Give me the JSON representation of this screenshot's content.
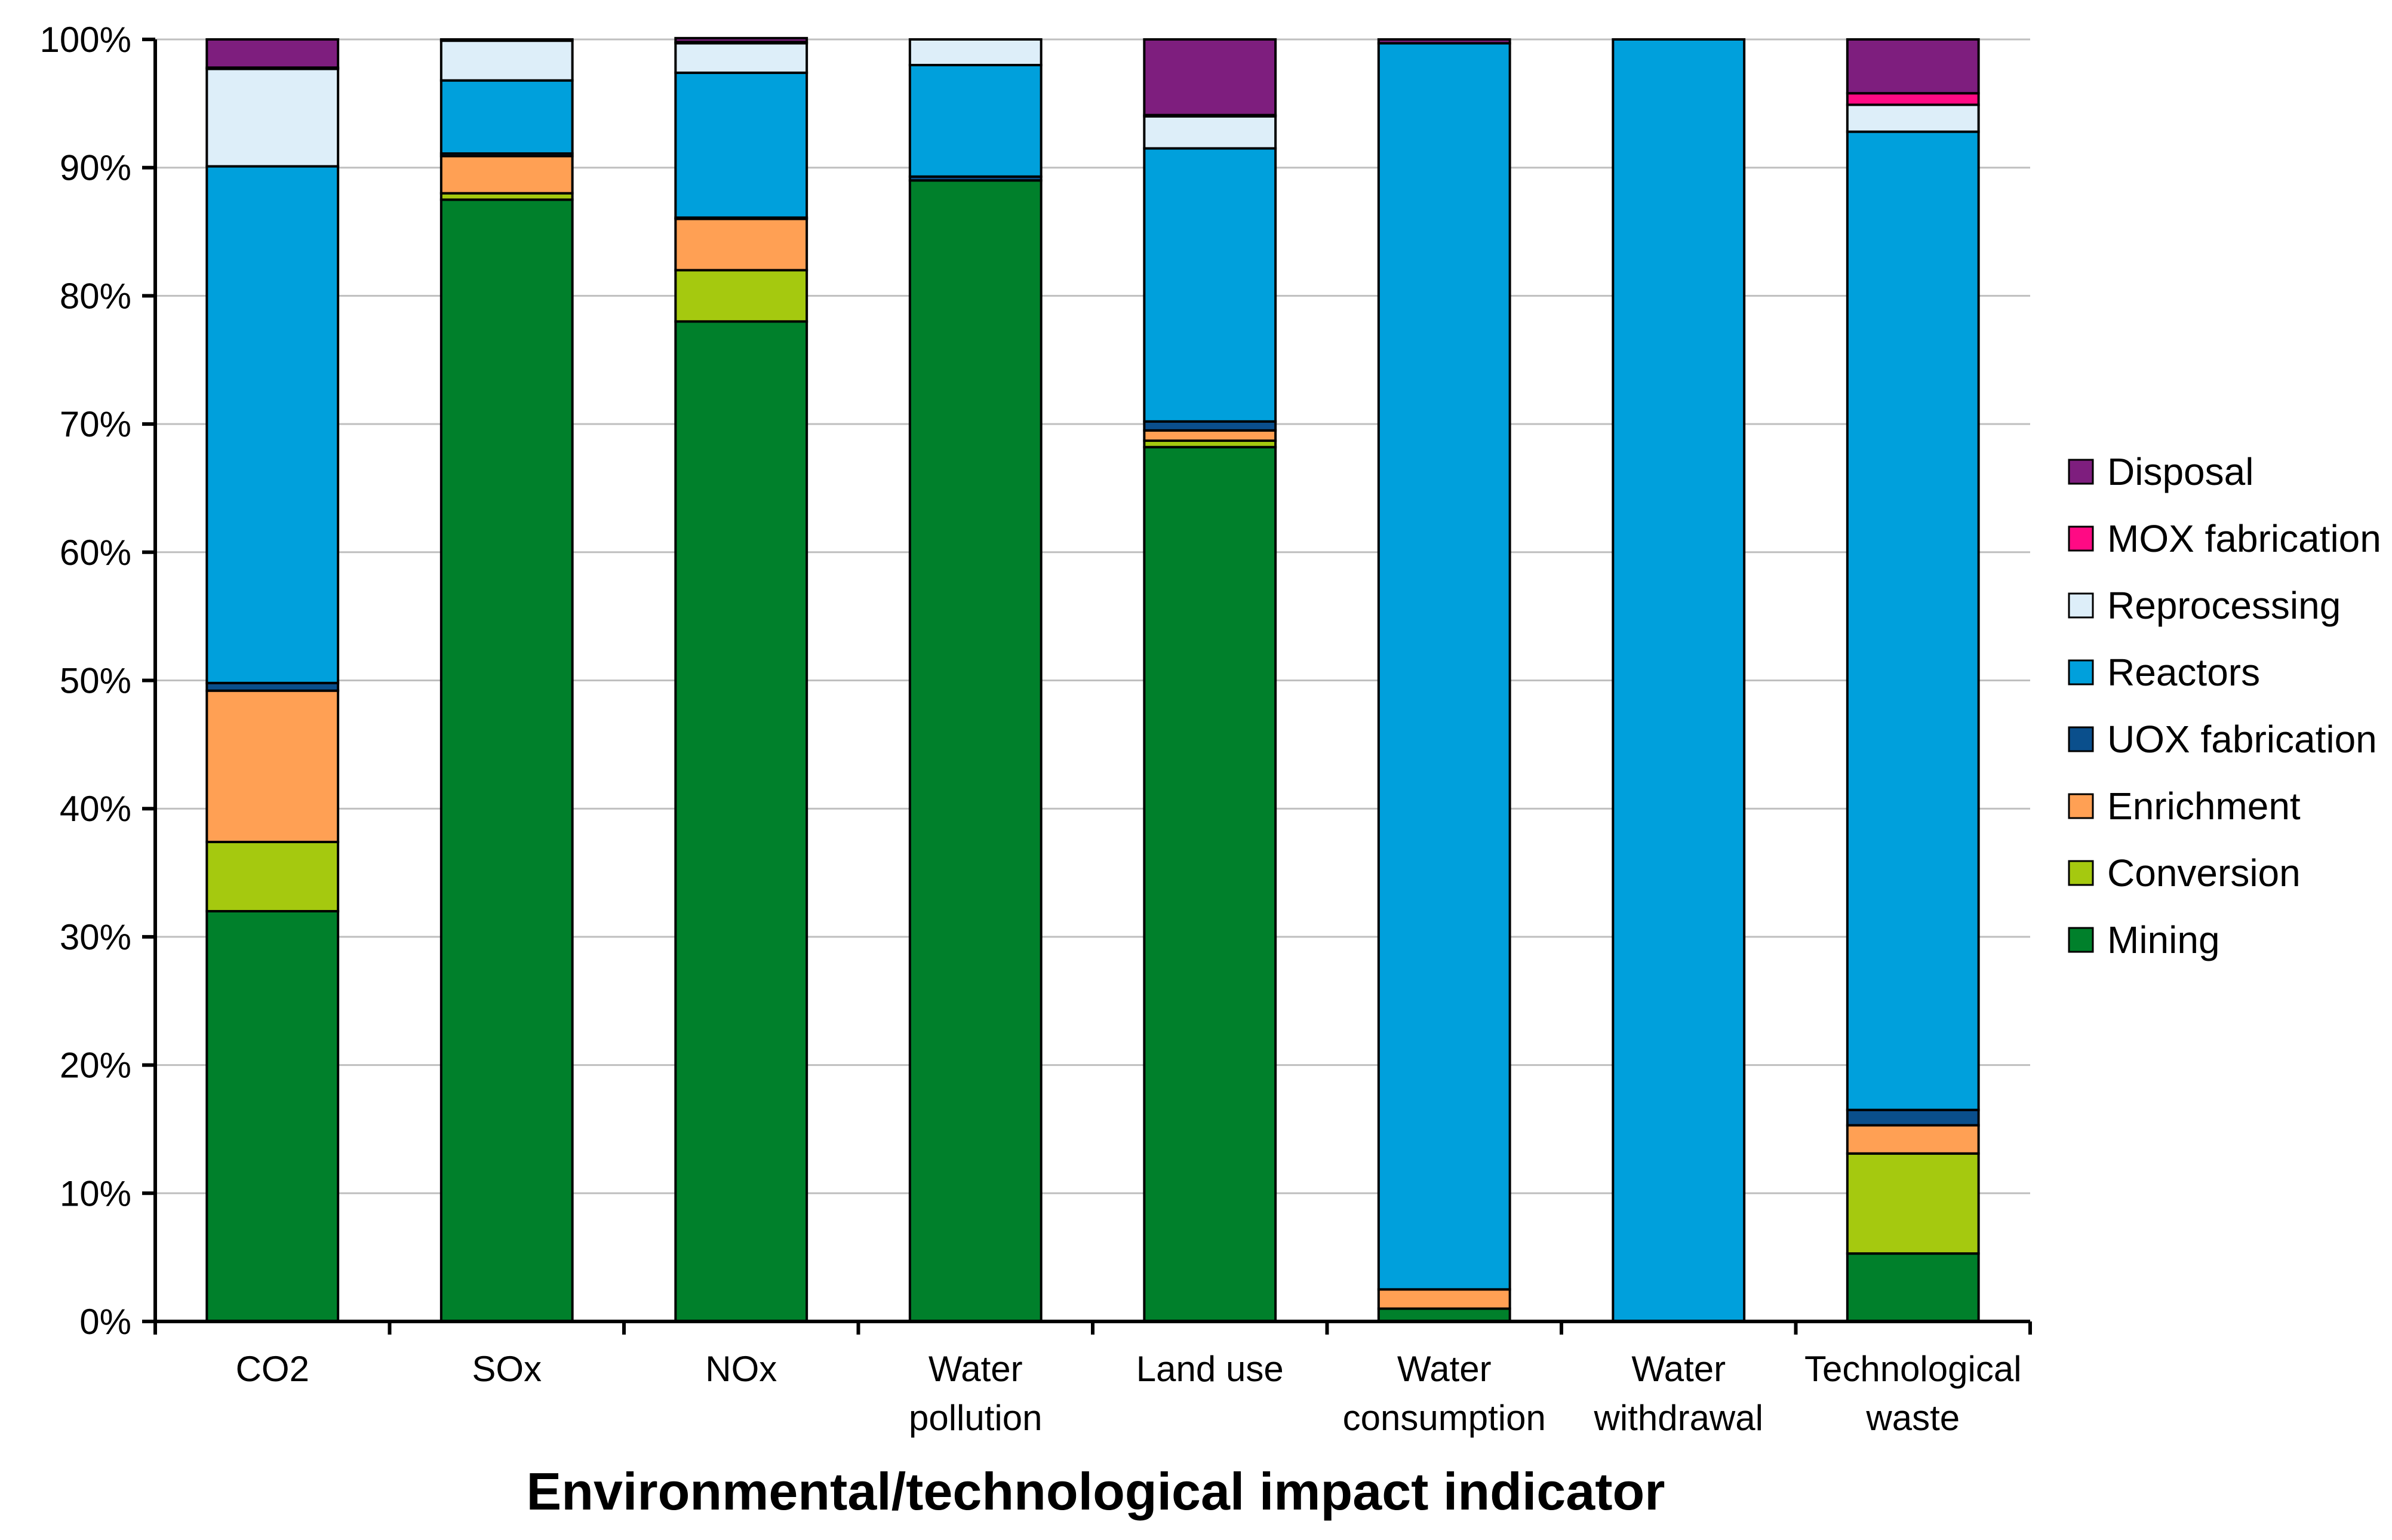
{
  "chart_data": {
    "type": "bar",
    "stacked": true,
    "title": "",
    "xlabel": "Environmental/technological impact indicator",
    "ylabel": "",
    "ylim": [
      0,
      100
    ],
    "y_ticks": [
      "0%",
      "10%",
      "20%",
      "30%",
      "40%",
      "50%",
      "60%",
      "70%",
      "80%",
      "90%",
      "100%"
    ],
    "grid": true,
    "legend_position": "right",
    "categories": [
      [
        "CO2"
      ],
      [
        "SOx"
      ],
      [
        "NOx"
      ],
      [
        "Water",
        "pollution"
      ],
      [
        "Land use"
      ],
      [
        "Water",
        "consumption"
      ],
      [
        "Water",
        "withdrawal"
      ],
      [
        "Technological",
        "waste"
      ]
    ],
    "series": [
      {
        "name": "Mining",
        "color": "#00802B",
        "values": [
          32.0,
          87.5,
          78.0,
          89.0,
          68.2,
          1.0,
          0.0,
          5.3
        ]
      },
      {
        "name": "Conversion",
        "color": "#A5C90F",
        "values": [
          5.4,
          0.5,
          4.0,
          0.0,
          0.5,
          0.0,
          0.0,
          7.8
        ]
      },
      {
        "name": "Enrichment",
        "color": "#FFA054",
        "values": [
          11.8,
          2.9,
          4.0,
          0.0,
          0.8,
          1.5,
          0.0,
          2.2
        ]
      },
      {
        "name": "UOX fabrication",
        "color": "#0A4F8C",
        "values": [
          0.6,
          0.2,
          0.1,
          0.3,
          0.7,
          0.0,
          0.0,
          1.2
        ]
      },
      {
        "name": "Reactors",
        "color": "#00A0DC",
        "values": [
          40.3,
          5.7,
          11.3,
          8.7,
          21.3,
          97.2,
          100.0,
          76.3
        ]
      },
      {
        "name": "Reprocessing",
        "color": "#DDEEF9",
        "values": [
          7.6,
          3.1,
          2.3,
          2.0,
          2.5,
          0.0,
          0.0,
          2.1
        ]
      },
      {
        "name": "MOX fabrication",
        "color": "#FF0A84",
        "values": [
          0.1,
          0.0,
          0.1,
          0.0,
          0.1,
          0.0,
          0.0,
          0.9
        ]
      },
      {
        "name": "Disposal",
        "color": "#7E1E7E",
        "values": [
          2.2,
          0.1,
          0.3,
          0.0,
          5.9,
          0.3,
          0.0,
          4.2
        ]
      }
    ]
  }
}
